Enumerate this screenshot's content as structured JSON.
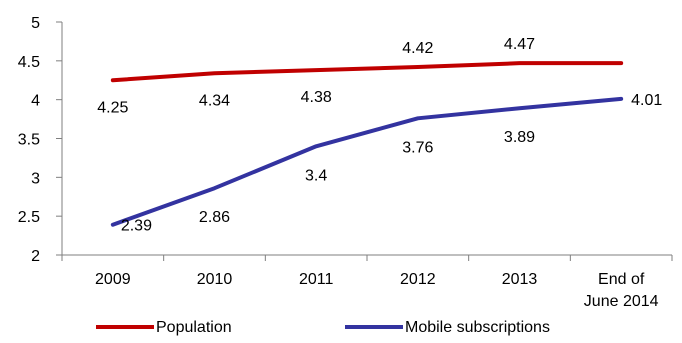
{
  "chart_data": {
    "type": "line",
    "categories": [
      "2009",
      "2010",
      "2011",
      "2012",
      "2013",
      "End of June 2014"
    ],
    "category_label_lines": [
      [
        "2009"
      ],
      [
        "2010"
      ],
      [
        "2011"
      ],
      [
        "2012"
      ],
      [
        "2013"
      ],
      [
        "End of",
        "June 2014"
      ]
    ],
    "ylim": [
      2,
      5
    ],
    "yticks": [
      "2",
      "2.5",
      "3",
      "3.5",
      "4",
      "4.5",
      "5"
    ],
    "grid": false,
    "legend_position": "bottom",
    "series": [
      {
        "name": "Population",
        "color": "#c00000",
        "values": [
          4.25,
          4.34,
          4.38,
          4.42,
          4.47,
          4.47
        ],
        "labels": [
          "4.25",
          "4.34",
          "4.38",
          "4.42",
          "4.47",
          ""
        ]
      },
      {
        "name": "Mobile subscriptions",
        "color": "#3333a0",
        "values": [
          2.39,
          2.86,
          3.4,
          3.76,
          3.89,
          4.01
        ],
        "labels": [
          "2.39",
          "2.86",
          "3.4",
          "3.76",
          "3.89",
          "4.01"
        ]
      }
    ]
  }
}
